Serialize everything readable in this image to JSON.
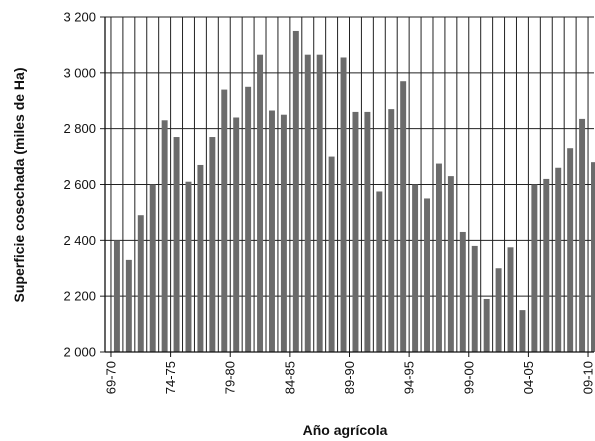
{
  "chart_data": {
    "type": "bar",
    "xlabel": "Año agrícola",
    "ylabel": "Superficie cosechada (miles de Ha)",
    "ylim": [
      2000,
      3200
    ],
    "yticks": [
      2000,
      2200,
      2400,
      2600,
      2800,
      3000,
      3200
    ],
    "ytick_labels": [
      "2 000",
      "2 200",
      "2 400",
      "2 600",
      "2 800",
      "3 000",
      "3 200"
    ],
    "grid": "vertical and horizontal",
    "bar_color": "#6b6b6b",
    "categories": [
      "69-70",
      "70-71",
      "71-72",
      "72-73",
      "73-74",
      "74-75",
      "75-76",
      "76-77",
      "77-78",
      "78-79",
      "79-80",
      "80-81",
      "81-82",
      "82-83",
      "83-84",
      "84-85",
      "85-86",
      "86-87",
      "87-88",
      "88-89",
      "89-90",
      "90-91",
      "91-92",
      "92-93",
      "93-94",
      "94-95",
      "95-96",
      "96-97",
      "97-98",
      "98-99",
      "99-00",
      "00-01",
      "01-02",
      "02-03",
      "03-04",
      "04-05",
      "05-06",
      "06-07",
      "07-08",
      "08-09",
      "09-10"
    ],
    "xtick_labels": [
      "69-70",
      "74-75",
      "79-80",
      "84-85",
      "89-90",
      "94-95",
      "99-00",
      "04-05",
      "09-10"
    ],
    "values": [
      2400,
      2330,
      2490,
      2600,
      2830,
      2770,
      2610,
      2670,
      2770,
      2940,
      2840,
      2950,
      3065,
      2865,
      2850,
      3150,
      3065,
      3065,
      2700,
      3055,
      2860,
      2860,
      2575,
      2870,
      2970,
      2600,
      2550,
      2675,
      2630,
      2430,
      2380,
      2190,
      2300,
      2375,
      2150,
      2600,
      2620,
      2660,
      2730,
      2835,
      2680
    ]
  }
}
